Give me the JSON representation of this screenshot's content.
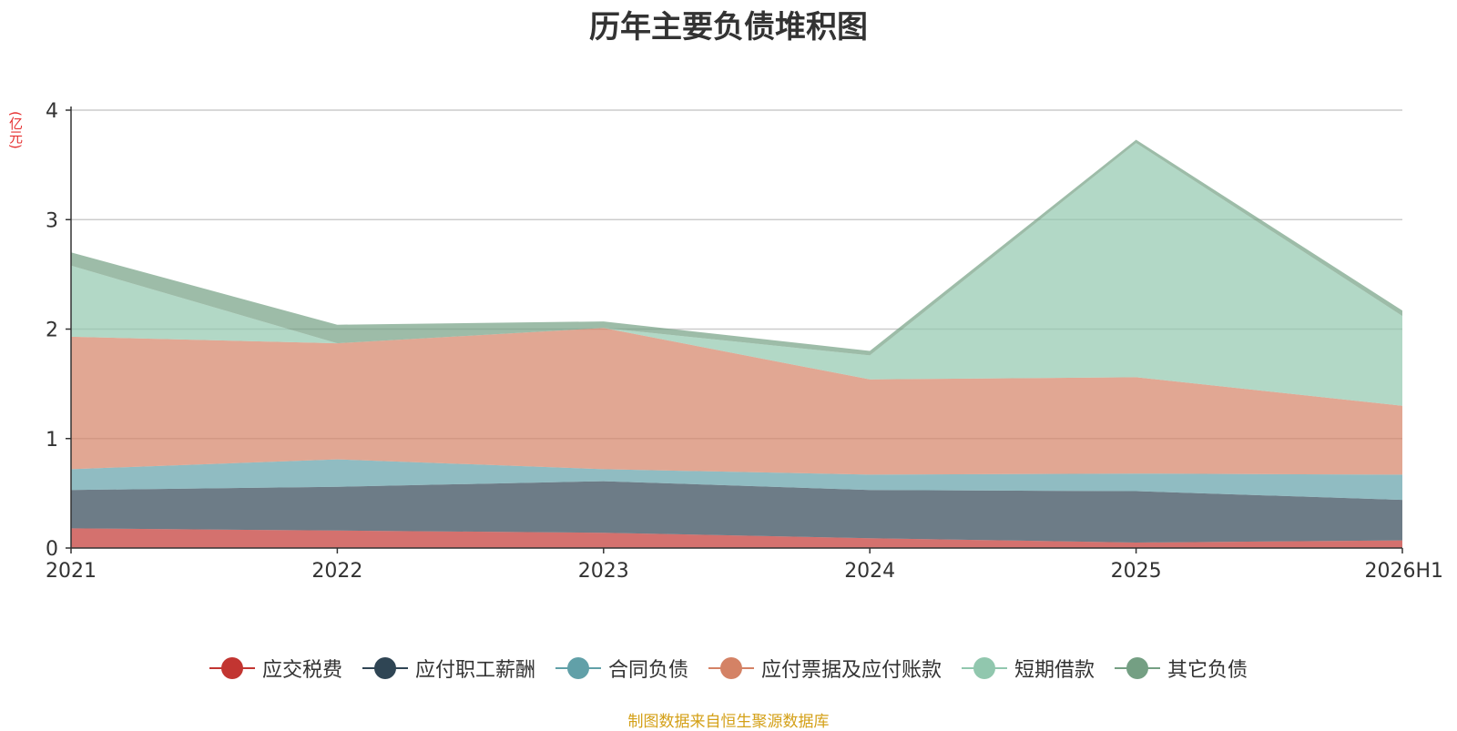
{
  "chart_data": {
    "type": "area",
    "stacked": true,
    "title": "历年主要负债堆积图",
    "unit": "(亿元)",
    "categories": [
      "2021",
      "2022",
      "2023",
      "2024",
      "2025",
      "2026H1"
    ],
    "ylim": [
      0,
      4
    ],
    "yticks": [
      "0",
      "1",
      "2",
      "3",
      "4"
    ],
    "grid": true,
    "legend_position": "bottom",
    "series": [
      {
        "name": "应交税费",
        "color": "#c23531",
        "values": [
          0.18,
          0.16,
          0.14,
          0.09,
          0.05,
          0.07
        ]
      },
      {
        "name": "应付职工薪酬",
        "color": "#2f4554",
        "values": [
          0.35,
          0.4,
          0.47,
          0.44,
          0.47,
          0.37
        ]
      },
      {
        "name": "合同负债",
        "color": "#61a0a8",
        "values": [
          0.19,
          0.25,
          0.11,
          0.14,
          0.16,
          0.23
        ]
      },
      {
        "name": "应付票据及应付账款",
        "color": "#d48265",
        "values": [
          1.21,
          1.06,
          1.29,
          0.87,
          0.88,
          0.63
        ]
      },
      {
        "name": "短期借款",
        "color": "#91c7ae",
        "values": [
          0.65,
          0.0,
          0.0,
          0.22,
          2.14,
          0.82
        ]
      },
      {
        "name": "其它负债",
        "color": "#749f83",
        "values": [
          0.12,
          0.17,
          0.06,
          0.04,
          0.03,
          0.05
        ]
      }
    ]
  },
  "source_note": "制图数据来自恒生聚源数据库"
}
